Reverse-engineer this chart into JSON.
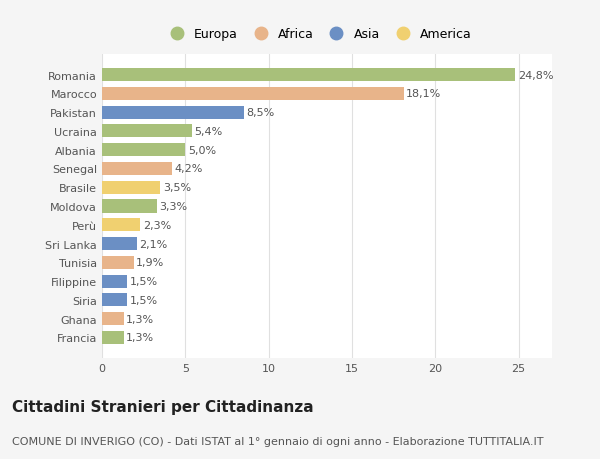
{
  "categories": [
    "Romania",
    "Marocco",
    "Pakistan",
    "Ucraina",
    "Albania",
    "Senegal",
    "Brasile",
    "Moldova",
    "Perù",
    "Sri Lanka",
    "Tunisia",
    "Filippine",
    "Siria",
    "Ghana",
    "Francia"
  ],
  "values": [
    24.8,
    18.1,
    8.5,
    5.4,
    5.0,
    4.2,
    3.5,
    3.3,
    2.3,
    2.1,
    1.9,
    1.5,
    1.5,
    1.3,
    1.3
  ],
  "continents": [
    "Europa",
    "Africa",
    "Asia",
    "Europa",
    "Europa",
    "Africa",
    "America",
    "Europa",
    "America",
    "Asia",
    "Africa",
    "Asia",
    "Asia",
    "Africa",
    "Europa"
  ],
  "continent_colors": {
    "Europa": "#a8c07a",
    "Africa": "#e8b48a",
    "Asia": "#6b8fc4",
    "America": "#f0d070"
  },
  "labels": [
    "24,8%",
    "18,1%",
    "8,5%",
    "5,4%",
    "5,0%",
    "4,2%",
    "3,5%",
    "3,3%",
    "2,3%",
    "2,1%",
    "1,9%",
    "1,5%",
    "1,5%",
    "1,3%",
    "1,3%"
  ],
  "title": "Cittadini Stranieri per Cittadinanza",
  "subtitle": "COMUNE DI INVERIGO (CO) - Dati ISTAT al 1° gennaio di ogni anno - Elaborazione TUTTITALIA.IT",
  "xlim": [
    0,
    27
  ],
  "xticks": [
    0,
    5,
    10,
    15,
    20,
    25
  ],
  "background_color": "#f5f5f5",
  "plot_background": "#ffffff",
  "grid_color": "#e0e0e0",
  "legend_order": [
    "Europa",
    "Africa",
    "Asia",
    "America"
  ],
  "title_fontsize": 11,
  "subtitle_fontsize": 8,
  "label_fontsize": 8,
  "tick_fontsize": 8,
  "legend_fontsize": 9,
  "bar_height": 0.7
}
